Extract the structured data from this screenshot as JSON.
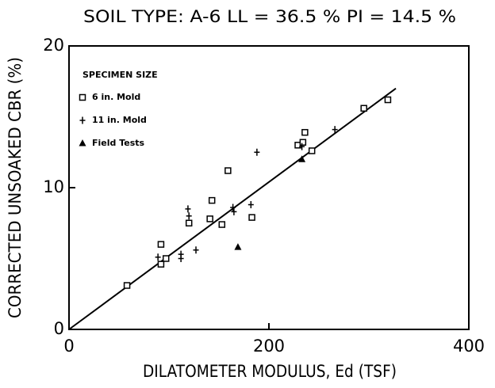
{
  "chart_data": {
    "type": "scatter",
    "title": "SOIL TYPE: A-6   LL = 36.5 % PI = 14.5 %",
    "xlabel": "DILATOMETER MODULUS, Ed (TSF)",
    "ylabel": "CORRECTED UNSOAKED CBR (%)",
    "legend_title": "SPECIMEN SIZE",
    "xlim": [
      0,
      400
    ],
    "xticks": [
      0,
      200,
      400
    ],
    "ylim": [
      0,
      20
    ],
    "yticks": [
      0,
      10,
      20
    ],
    "color": "#000000",
    "series": [
      {
        "name": "6 in. Mold",
        "marker": "square",
        "x": [
          58,
          92,
          97,
          92,
          120,
          143,
          141,
          153,
          159,
          183,
          229,
          234,
          236,
          243,
          295,
          319
        ],
        "values": [
          3.1,
          6.0,
          5.0,
          4.6,
          7.5,
          9.1,
          7.8,
          7.4,
          11.2,
          7.9,
          13.0,
          13.2,
          13.9,
          12.6,
          15.6,
          16.2
        ]
      },
      {
        "name": "11 in. Mold",
        "marker": "plus",
        "x": [
          89,
          112,
          112,
          119,
          120,
          127,
          164,
          165,
          182,
          188,
          233,
          266
        ],
        "values": [
          5.1,
          5.0,
          5.3,
          8.5,
          8.0,
          5.6,
          8.6,
          8.3,
          8.8,
          12.5,
          12.9,
          14.1
        ]
      },
      {
        "name": "Field Tests",
        "marker": "triangle",
        "x": [
          169,
          233
        ],
        "values": [
          5.8,
          12.0
        ]
      }
    ],
    "fit_line": {
      "x": [
        0,
        327
      ],
      "values": [
        0,
        17.0
      ]
    }
  }
}
